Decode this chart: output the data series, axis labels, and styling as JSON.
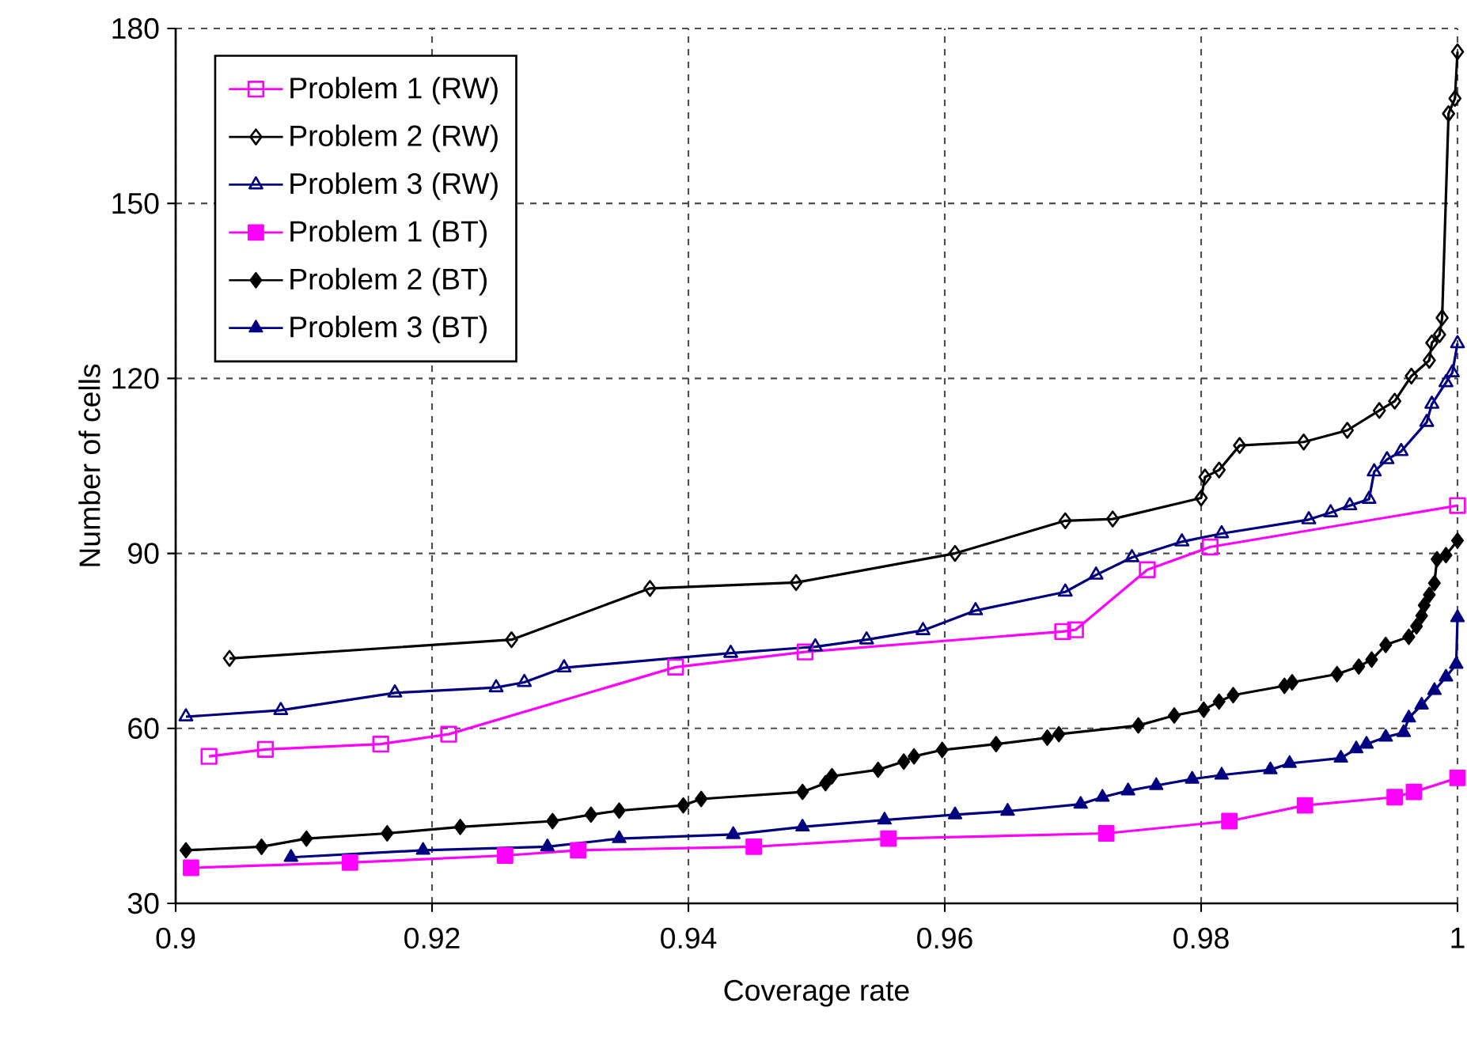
{
  "chart_data": {
    "type": "line",
    "xlabel": "Coverage rate",
    "ylabel": "Number of cells",
    "xlim": [
      0.9,
      1
    ],
    "ylim": [
      30,
      180
    ],
    "xticks": [
      0.9,
      0.92,
      0.94,
      0.96,
      0.98,
      1
    ],
    "yticks": [
      30,
      60,
      90,
      120,
      150,
      180
    ],
    "grid": true,
    "legend": "top left",
    "line_style": "solid",
    "series": [
      {
        "name": "Problem 1 (RW)",
        "color": "#ff00ff",
        "marker": "square",
        "x": [
          0.9026,
          0.907,
          0.916,
          0.9213,
          0.939,
          0.9491,
          0.9692,
          0.9702,
          0.9758,
          0.9807,
          1.0
        ],
        "values": [
          55.2,
          56.4,
          57.3,
          59.0,
          70.5,
          73.1,
          76.6,
          76.9,
          87.2,
          91.1,
          98.2
        ]
      },
      {
        "name": "Problem 2 (RW)",
        "color": "#000000",
        "marker": "diamond",
        "x": [
          0.9042,
          0.9262,
          0.937,
          0.9484,
          0.9608,
          0.9694,
          0.9731,
          0.98,
          0.9803,
          0.9814,
          0.983,
          0.988,
          0.9914,
          0.9939,
          0.9951,
          0.9964,
          0.9978,
          0.998,
          0.9986,
          0.9988,
          0.9993,
          0.9998,
          1.0
        ],
        "values": [
          72.0,
          75.2,
          84.0,
          85.0,
          90.0,
          95.6,
          95.9,
          99.5,
          103.1,
          104.3,
          108.5,
          109.1,
          111.1,
          114.5,
          116.1,
          120.4,
          123.1,
          126.1,
          127.5,
          130.4,
          165.4,
          168.0,
          176.0
        ]
      },
      {
        "name": "Problem 3 (RW)",
        "color": "#000080",
        "marker": "triangle",
        "x": [
          0.9008,
          0.9082,
          0.9171,
          0.925,
          0.9272,
          0.9303,
          0.9433,
          0.9499,
          0.9539,
          0.9583,
          0.9624,
          0.9694,
          0.9718,
          0.9746,
          0.9785,
          0.9816,
          0.9884,
          0.9901,
          0.9916,
          0.9931,
          0.9935,
          0.9945,
          0.9956,
          0.9976,
          0.998,
          0.9991,
          0.9996,
          1.0
        ],
        "values": [
          62.0,
          63.1,
          66.1,
          67.0,
          67.9,
          70.4,
          72.9,
          74.0,
          75.2,
          76.8,
          80.2,
          83.4,
          86.3,
          89.3,
          92.0,
          93.4,
          95.8,
          97.0,
          98.2,
          99.3,
          104.0,
          106.1,
          107.5,
          112.5,
          115.6,
          119.3,
          121.0,
          126.0
        ]
      },
      {
        "name": "Problem 1 (BT)",
        "color": "#ff00ff",
        "marker": "square",
        "x": [
          0.9012,
          0.9136,
          0.9257,
          0.9314,
          0.9451,
          0.9556,
          0.9726,
          0.9822,
          0.9881,
          0.9951,
          0.9966,
          1.0
        ],
        "values": [
          36.1,
          37.0,
          38.2,
          39.1,
          39.7,
          41.1,
          42.0,
          44.1,
          46.8,
          48.2,
          49.1,
          51.5
        ]
      },
      {
        "name": "Problem 2 (BT)",
        "color": "#000000",
        "marker": "diamond",
        "x": [
          0.9008,
          0.9067,
          0.9102,
          0.9165,
          0.9222,
          0.9294,
          0.9324,
          0.9346,
          0.9396,
          0.941,
          0.9489,
          0.9507,
          0.9512,
          0.9548,
          0.9568,
          0.9576,
          0.9598,
          0.964,
          0.968,
          0.9689,
          0.9751,
          0.9779,
          0.9802,
          0.9814,
          0.9825,
          0.9865,
          0.9871,
          0.9906,
          0.9923,
          0.9933,
          0.9944,
          0.9962,
          0.9968,
          0.9972,
          0.9974,
          0.9978,
          0.9982,
          0.9984,
          0.9991,
          1.0
        ],
        "values": [
          39.1,
          39.7,
          41.1,
          42.0,
          43.1,
          44.1,
          45.2,
          45.9,
          46.8,
          47.9,
          49.1,
          50.6,
          51.8,
          52.9,
          54.3,
          55.2,
          56.3,
          57.3,
          58.4,
          59.0,
          60.5,
          62.2,
          63.2,
          64.6,
          65.7,
          67.3,
          67.9,
          69.3,
          70.6,
          71.8,
          74.3,
          75.7,
          77.5,
          79.3,
          81.1,
          82.9,
          84.9,
          89.0,
          89.7,
          92.2
        ]
      },
      {
        "name": "Problem 3 (BT)",
        "color": "#000080",
        "marker": "triangle",
        "x": [
          0.909,
          0.9193,
          0.929,
          0.9346,
          0.9435,
          0.9489,
          0.9553,
          0.9608,
          0.9649,
          0.9706,
          0.9723,
          0.9743,
          0.9765,
          0.9793,
          0.9816,
          0.9854,
          0.9869,
          0.9909,
          0.9921,
          0.9929,
          0.9944,
          0.9958,
          0.9962,
          0.9972,
          0.9982,
          0.9991,
          0.9999,
          1.0
        ],
        "values": [
          37.9,
          39.1,
          39.7,
          41.1,
          41.8,
          43.1,
          44.3,
          45.2,
          45.8,
          47.0,
          48.2,
          49.3,
          50.2,
          51.3,
          52.0,
          52.9,
          54.0,
          54.9,
          56.5,
          57.3,
          58.5,
          59.3,
          61.8,
          64.0,
          66.5,
          68.8,
          71.0,
          79.0
        ]
      }
    ]
  }
}
